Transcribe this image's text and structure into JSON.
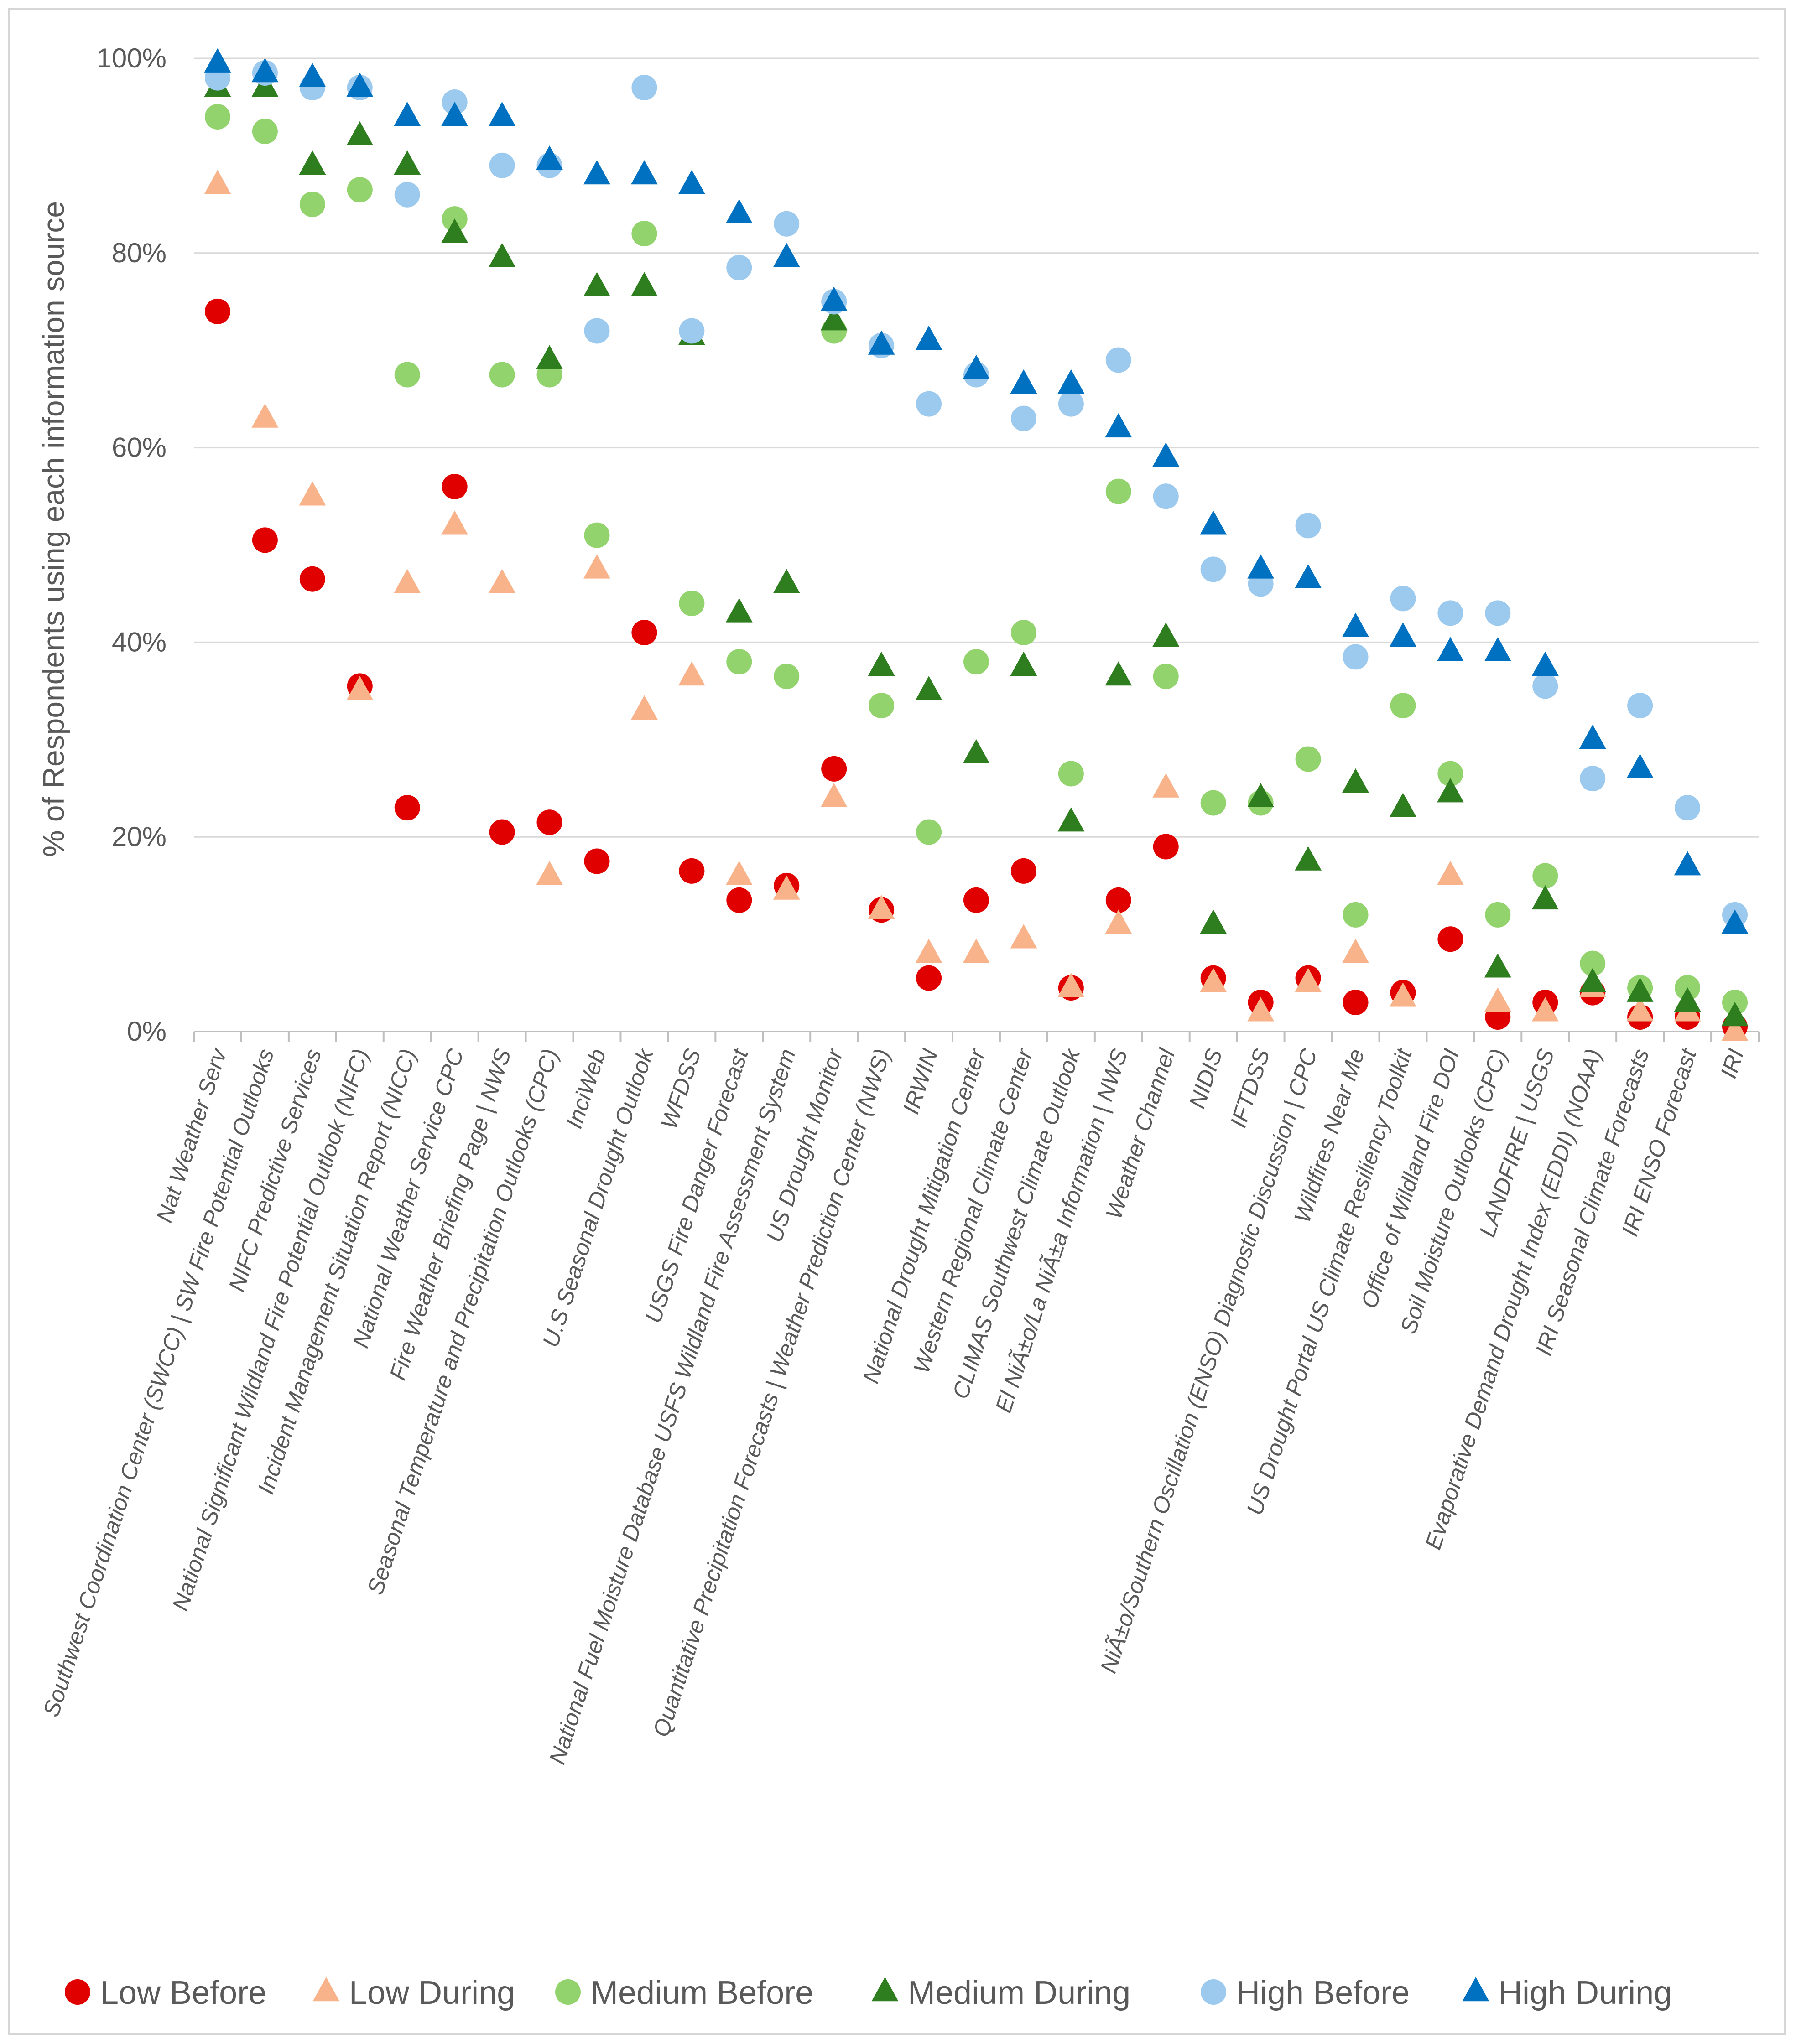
{
  "chart_data": {
    "type": "scatter",
    "title": "",
    "xlabel": "",
    "ylabel": "% of Respondents using each information source",
    "ylim": [
      0,
      100
    ],
    "y_ticks": [
      "0%",
      "20%",
      "40%",
      "60%",
      "80%",
      "100%"
    ],
    "grid": true,
    "legend_position": "bottom",
    "categories": [
      "Nat Weather Serv",
      "Southwest Coordination Center (SWCC) | SW Fire Potential Outlooks",
      "NIFC Predictive Services",
      "National Significant Wildland Fire Potential Outlook (NIFC)",
      "Incident Management Situation Report (NICC)",
      "National Weather Service CPC",
      "Fire Weather Briefing Page | NWS",
      "Seasonal Temperature and Precipitation Outlooks (CPC)",
      "InciWeb",
      "U.S Seasonal Drought Outlook",
      "WFDSS",
      "USGS Fire Danger Forecast",
      "National Fuel Moisture Database USFS Wildland Fire Assessment System",
      "US Drought Monitor",
      "Quantitative Precipitation Forecasts | Weather Prediction Center (NWS)",
      "IRWIN",
      "National Drought Mitigation Center",
      "Western Regional Climate Center",
      "CLIMAS Southwest Climate Outlook",
      "El NiÃ±o/La NiÃ±a Information | NWS",
      "Weather Channel",
      "NIDIS",
      "IFTDSS",
      "NiÃ±o/Southern Oscillation (ENSO) Diagnostic Discussion | CPC",
      "Wildfires Near Me",
      "US Drought Portal US Climate Resiliency Toolkit",
      "Office of Wildland Fire DOI",
      "Soil Moisture Outlooks (CPC)",
      "LANDFIRE | USGS",
      "Evaporative Demand Drought Index (EDDI) (NOAA)",
      "IRI Seasonal Climate Forecasts",
      "IRI ENSO Forecast",
      "IRI"
    ],
    "series": [
      {
        "name": "Low Before",
        "marker": "circle",
        "color": "#e00000",
        "values": [
          74,
          50.5,
          46.5,
          35.5,
          23,
          56,
          20.5,
          21.5,
          17.5,
          41,
          16.5,
          13.5,
          15,
          27,
          12.5,
          5.5,
          13.5,
          16.5,
          4.5,
          13.5,
          19,
          5.5,
          3,
          5.5,
          3,
          4,
          9.5,
          1.5,
          3,
          4,
          1.5,
          1.5,
          0.5
        ]
      },
      {
        "name": "Low During",
        "marker": "triangle",
        "color": "#f8b38a",
        "values": [
          87,
          63,
          55,
          35,
          46,
          52,
          46,
          16,
          47.5,
          33,
          36.5,
          16,
          14.5,
          24,
          12.5,
          8,
          8,
          9.5,
          4.5,
          11,
          25,
          5,
          2,
          5,
          8,
          3.5,
          16,
          3,
          2,
          4.5,
          2,
          2,
          0
        ]
      },
      {
        "name": "Medium Before",
        "marker": "circle",
        "color": "#92d36e",
        "values": [
          94,
          92.5,
          85,
          86.5,
          67.5,
          83.5,
          67.5,
          67.5,
          51,
          82,
          44,
          38,
          36.5,
          72,
          33.5,
          20.5,
          38,
          41,
          26.5,
          55.5,
          36.5,
          23.5,
          23.5,
          28,
          12,
          33.5,
          26.5,
          12,
          16,
          7,
          4.5,
          4.5,
          3
        ]
      },
      {
        "name": "Medium During",
        "marker": "triangle",
        "color": "#2e7d1e",
        "values": [
          97,
          97,
          89,
          92,
          89,
          82,
          79.5,
          69,
          76.5,
          76.5,
          71.5,
          43,
          46,
          73,
          37.5,
          35,
          28.5,
          37.5,
          21.5,
          36.5,
          40.5,
          11,
          24,
          17.5,
          25.5,
          23,
          24.5,
          6.5,
          13.5,
          5,
          4,
          3,
          1.5
        ]
      },
      {
        "name": "High Before",
        "marker": "circle",
        "color": "#9cc9ee",
        "values": [
          98,
          98.5,
          97,
          97,
          86,
          95.5,
          89,
          89,
          72,
          97,
          72,
          78.5,
          83,
          75,
          70.5,
          64.5,
          67.5,
          63,
          64.5,
          69,
          55,
          47.5,
          46,
          52,
          38.5,
          44.5,
          43,
          43,
          35.5,
          26,
          33.5,
          23,
          12
        ]
      },
      {
        "name": "High During",
        "marker": "triangle",
        "color": "#0070c0",
        "values": [
          99.5,
          98.5,
          98,
          97,
          94,
          94,
          94,
          89.5,
          88,
          88,
          87,
          84,
          79.5,
          75,
          70.5,
          71,
          68,
          66.5,
          66.5,
          62,
          59,
          52,
          47.5,
          46.5,
          41.5,
          40.5,
          39,
          39,
          37.5,
          30,
          27,
          17,
          11
        ]
      }
    ]
  }
}
